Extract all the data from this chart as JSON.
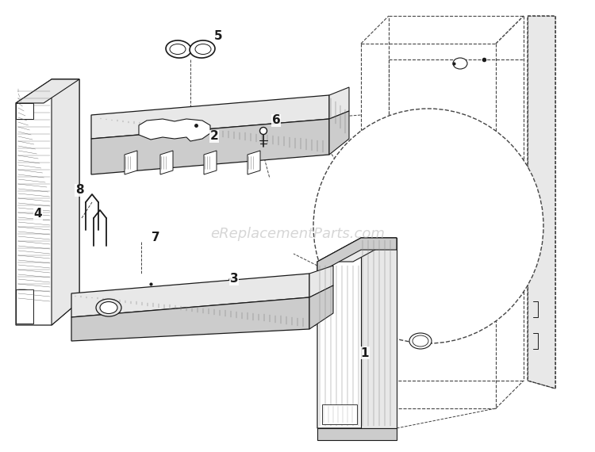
{
  "bg_color": "#ffffff",
  "line_color": "#1a1a1a",
  "dashed_color": "#444444",
  "watermark_text": "eReplacementParts.com",
  "watermark_color": "#bbbbbb",
  "watermark_fontsize": 13,
  "fig_width": 7.5,
  "fig_height": 5.7,
  "dpi": 100
}
